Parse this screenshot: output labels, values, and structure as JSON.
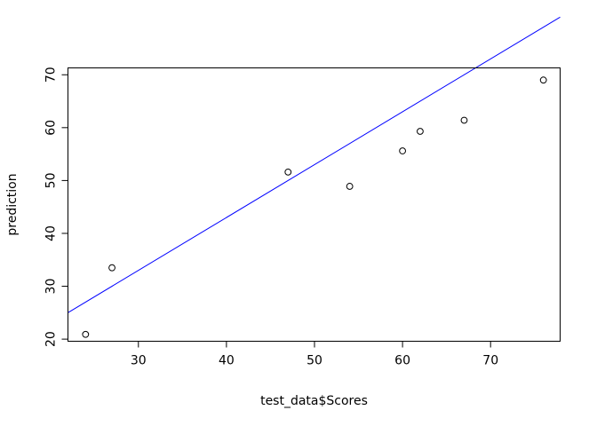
{
  "chart_data": {
    "type": "scatter",
    "title": "",
    "xlabel": "test_data$Scores",
    "ylabel": "prediction",
    "xlim": [
      22.0,
      77.9
    ],
    "ylim": [
      19.6,
      71.3
    ],
    "x_ticks": [
      30,
      40,
      50,
      60,
      70
    ],
    "y_ticks": [
      20,
      30,
      40,
      50,
      60,
      70
    ],
    "grid": false,
    "legend": "none",
    "series": [
      {
        "type": "scatter",
        "marker": "open-circle",
        "color": "#000000",
        "points": [
          {
            "x": 24,
            "y": 20.9
          },
          {
            "x": 27,
            "y": 33.5
          },
          {
            "x": 47,
            "y": 51.6
          },
          {
            "x": 54,
            "y": 48.9
          },
          {
            "x": 60,
            "y": 55.6
          },
          {
            "x": 62,
            "y": 59.3
          },
          {
            "x": 67,
            "y": 61.4
          },
          {
            "x": 76,
            "y": 69.0
          }
        ]
      },
      {
        "type": "line",
        "line_kind": "reference-line",
        "color": "#0000ff",
        "intercept": 3,
        "slope": 1
      }
    ]
  }
}
